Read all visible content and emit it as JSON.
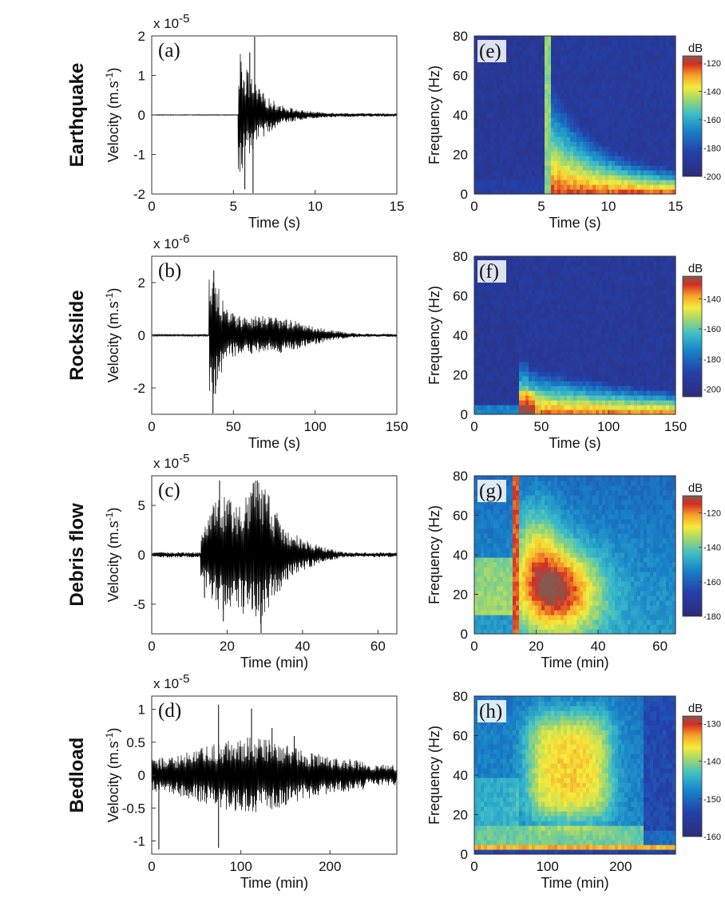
{
  "chart_data": [
    {
      "type": "line",
      "panel_label": "(a)",
      "row_label": "Earthquake",
      "xlabel": "Time (s)",
      "ylabel": "Velocity (m.s",
      "ylabel_sup": "-1",
      "ylabel_tail": ")",
      "scale_text": "x 10",
      "scale_exp": "-5",
      "xlim": [
        0,
        15
      ],
      "ylim": [
        -2,
        2
      ],
      "xticks": [
        "0",
        "5",
        "10",
        "15"
      ],
      "yticks": [
        "-2",
        "-1",
        "0",
        "1",
        "2"
      ],
      "signal": {
        "onset": 5.3,
        "peak_time": 6.3,
        "peak_amplitude": 2.0,
        "min_amplitude": -2.0,
        "coda_end": 15
      }
    },
    {
      "type": "line",
      "panel_label": "(b)",
      "row_label": "Rockslide",
      "xlabel": "Time (s)",
      "ylabel": "Velocity (m.s",
      "ylabel_sup": "-1",
      "ylabel_tail": ")",
      "scale_text": "x 10",
      "scale_exp": "-6",
      "xlim": [
        0,
        150
      ],
      "ylim": [
        -3,
        3
      ],
      "xticks": [
        "0",
        "50",
        "100",
        "150"
      ],
      "yticks": [
        "-2",
        "0",
        "2"
      ],
      "signal": {
        "onset": 36,
        "peak_time": 38,
        "peak_amplitude": 2.5,
        "min_amplitude": -3.0,
        "coda_end": 150
      }
    },
    {
      "type": "line",
      "panel_label": "(c)",
      "row_label": "Debris flow",
      "xlabel": "Time (min)",
      "ylabel": "Velocity (m.s",
      "ylabel_sup": "-1",
      "ylabel_tail": ")",
      "scale_text": "x 10",
      "scale_exp": "-5",
      "xlim": [
        0,
        65
      ],
      "ylim": [
        -8,
        8
      ],
      "xticks": [
        "0",
        "20",
        "40",
        "60"
      ],
      "yticks": [
        "-5",
        "0",
        "5"
      ],
      "signal": {
        "onset": 13,
        "peak_time": 28,
        "peak_amplitude": 7.5,
        "min_amplitude": -8.0,
        "coda_end": 60
      }
    },
    {
      "type": "line",
      "panel_label": "(d)",
      "row_label": "Bedload",
      "xlabel": "Time (min)",
      "ylabel": "Velocity (m.s",
      "ylabel_sup": "-1",
      "ylabel_tail": ")",
      "scale_text": "x 10",
      "scale_exp": "-5",
      "xlim": [
        0,
        275
      ],
      "ylim": [
        -1.2,
        1.2
      ],
      "xticks": [
        "0",
        "100",
        "200"
      ],
      "yticks": [
        "-1",
        "-0.5",
        "0",
        "0.5",
        "1"
      ],
      "signal": {
        "onset": 0,
        "peak_time": 75,
        "peak_amplitude": 1.1,
        "min_amplitude": -1.15,
        "coda_end": 275
      }
    },
    {
      "type": "heatmap",
      "panel_label": "(e)",
      "xlabel": "Time (s)",
      "ylabel": "Frequency (Hz)",
      "colorbar_label": "dB",
      "xlim": [
        0,
        15
      ],
      "ylim": [
        0,
        80
      ],
      "xticks": [
        "0",
        "5",
        "10",
        "15"
      ],
      "yticks": [
        "0",
        "20",
        "40",
        "60",
        "80"
      ],
      "colorbar_ticks": [
        "-120",
        "-140",
        "-160",
        "-180",
        "-200"
      ],
      "colorbar_range": [
        -200,
        -115
      ]
    },
    {
      "type": "heatmap",
      "panel_label": "(f)",
      "xlabel": "Time (s)",
      "ylabel": "Frequency (Hz)",
      "colorbar_label": "dB",
      "xlim": [
        0,
        150
      ],
      "ylim": [
        0,
        80
      ],
      "xticks": [
        "0",
        "50",
        "100",
        "150"
      ],
      "yticks": [
        "0",
        "20",
        "40",
        "60",
        "80"
      ],
      "colorbar_ticks": [
        "-140",
        "-160",
        "-180",
        "-200"
      ],
      "colorbar_range": [
        -205,
        -125
      ]
    },
    {
      "type": "heatmap",
      "panel_label": "(g)",
      "xlabel": "Time (min)",
      "ylabel": "Frequency (Hz)",
      "colorbar_label": "dB",
      "xlim": [
        0,
        65
      ],
      "ylim": [
        0,
        80
      ],
      "xticks": [
        "0",
        "20",
        "40",
        "60"
      ],
      "yticks": [
        "0",
        "20",
        "40",
        "60",
        "80"
      ],
      "colorbar_ticks": [
        "-120",
        "-140",
        "-160",
        "-180"
      ],
      "colorbar_range": [
        -180,
        -110
      ]
    },
    {
      "type": "heatmap",
      "panel_label": "(h)",
      "xlabel": "Time (min)",
      "ylabel": "Frequency (Hz)",
      "colorbar_label": "dB",
      "xlim": [
        0,
        275
      ],
      "ylim": [
        0,
        80
      ],
      "xticks": [
        "0",
        "100",
        "200"
      ],
      "yticks": [
        "0",
        "20",
        "40",
        "60",
        "80"
      ],
      "colorbar_ticks": [
        "-130",
        "-140",
        "-150",
        "-160"
      ],
      "colorbar_range": [
        -160,
        -128
      ]
    }
  ]
}
